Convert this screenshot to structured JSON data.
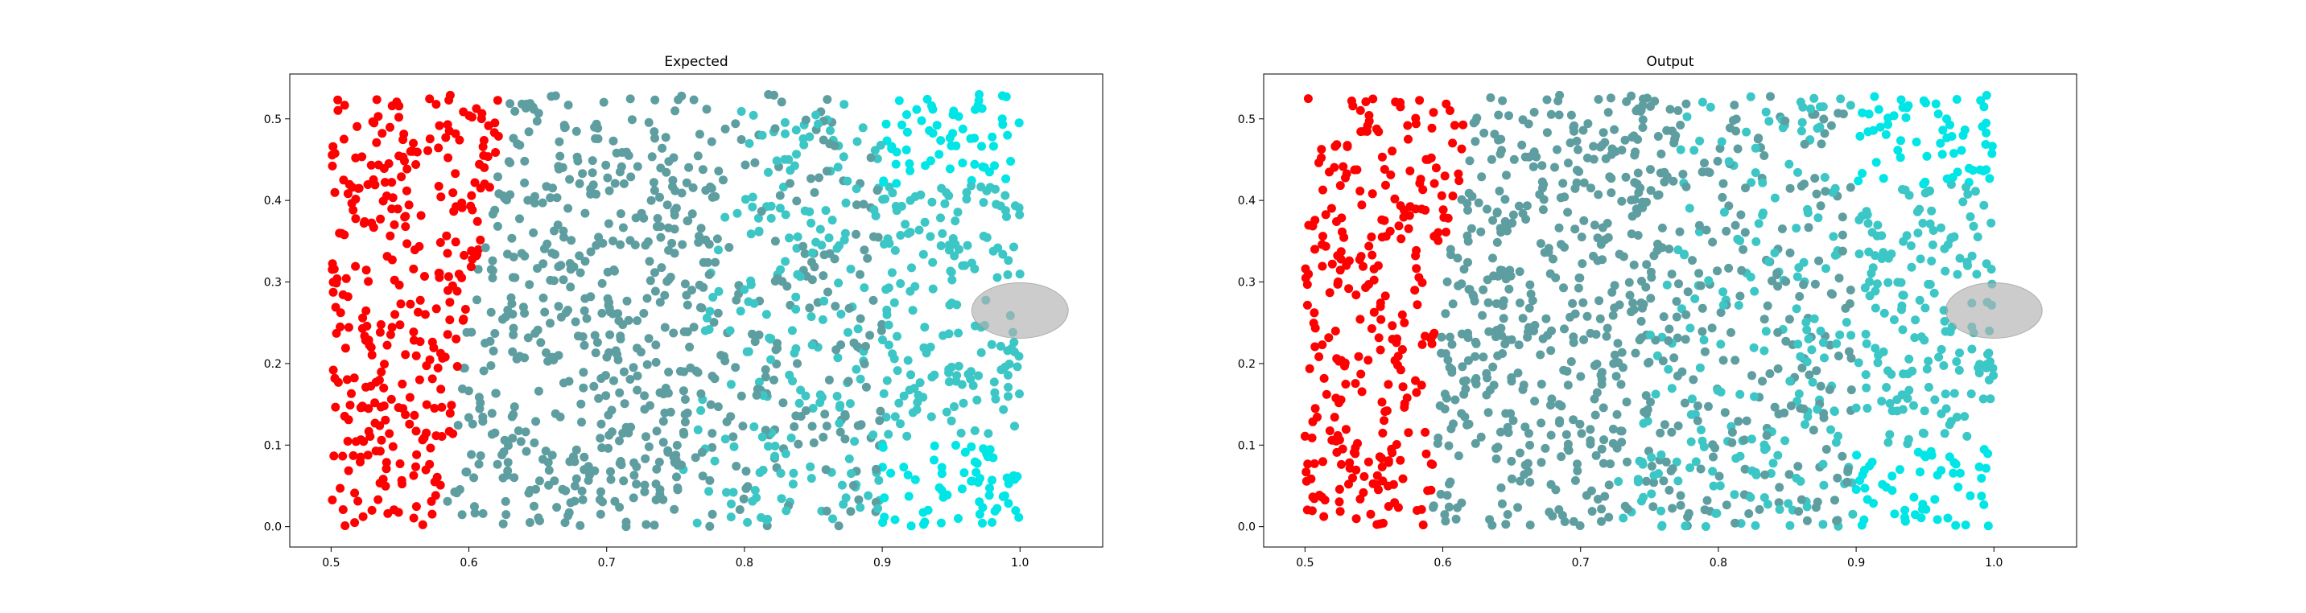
{
  "chart_data": [
    {
      "type": "scatter",
      "title": "Expected",
      "xlabel": "",
      "ylabel": "",
      "xlim": [
        0.47,
        1.06
      ],
      "ylim": [
        -0.025,
        0.555
      ],
      "xticks": [
        0.5,
        0.6,
        0.7,
        0.8,
        0.9,
        1.0
      ],
      "xtick_labels": [
        "0.5",
        "0.6",
        "0.7",
        "0.8",
        "0.9",
        "1.0"
      ],
      "yticks": [
        0.0,
        0.1,
        0.2,
        0.3,
        0.4,
        0.5
      ],
      "ytick_labels": [
        "0.0",
        "0.1",
        "0.2",
        "0.3",
        "0.4",
        "0.5"
      ],
      "grid": false,
      "point_domain": {
        "x": [
          0.5,
          1.0
        ],
        "y": [
          0.0,
          0.53
        ]
      },
      "region_boundaries_x": {
        "red": [
          0.58,
          0.6,
          0.63
        ],
        "dark": [
          0.75,
          0.77,
          0.8
        ],
        "mid": [
          0.9
        ]
      },
      "ellipse": {
        "cx": 1.0,
        "cy": 0.265,
        "rx": 0.035,
        "ry": 0.034,
        "color": "#b0b0b0",
        "opacity": 0.65
      },
      "colors": {
        "red": "#ff0000",
        "dark_teal": "#5f9ea0",
        "teal": "#3cc6c6",
        "cyan": "#00e5e5"
      }
    },
    {
      "type": "scatter",
      "title": "Output",
      "xlabel": "",
      "ylabel": "",
      "xlim": [
        0.47,
        1.06
      ],
      "ylim": [
        -0.025,
        0.555
      ],
      "xticks": [
        0.5,
        0.6,
        0.7,
        0.8,
        0.9,
        1.0
      ],
      "xtick_labels": [
        "0.5",
        "0.6",
        "0.7",
        "0.8",
        "0.9",
        "1.0"
      ],
      "yticks": [
        0.0,
        0.1,
        0.2,
        0.3,
        0.4,
        0.5
      ],
      "ytick_labels": [
        "0.0",
        "0.1",
        "0.2",
        "0.3",
        "0.4",
        "0.5"
      ],
      "grid": false,
      "point_domain": {
        "x": [
          0.5,
          1.0
        ],
        "y": [
          0.0,
          0.53
        ]
      },
      "region_boundaries_x": {
        "red": [
          0.59,
          0.6,
          0.62
        ],
        "dark": [
          0.72,
          0.75,
          0.78
        ],
        "mid": [
          0.9
        ]
      },
      "ellipse": {
        "cx": 1.0,
        "cy": 0.265,
        "rx": 0.035,
        "ry": 0.034,
        "color": "#b0b0b0",
        "opacity": 0.65
      },
      "colors": {
        "red": "#ff0000",
        "dark_teal": "#5f9ea0",
        "teal": "#3cc6c6",
        "cyan": "#00e5e5"
      }
    }
  ]
}
